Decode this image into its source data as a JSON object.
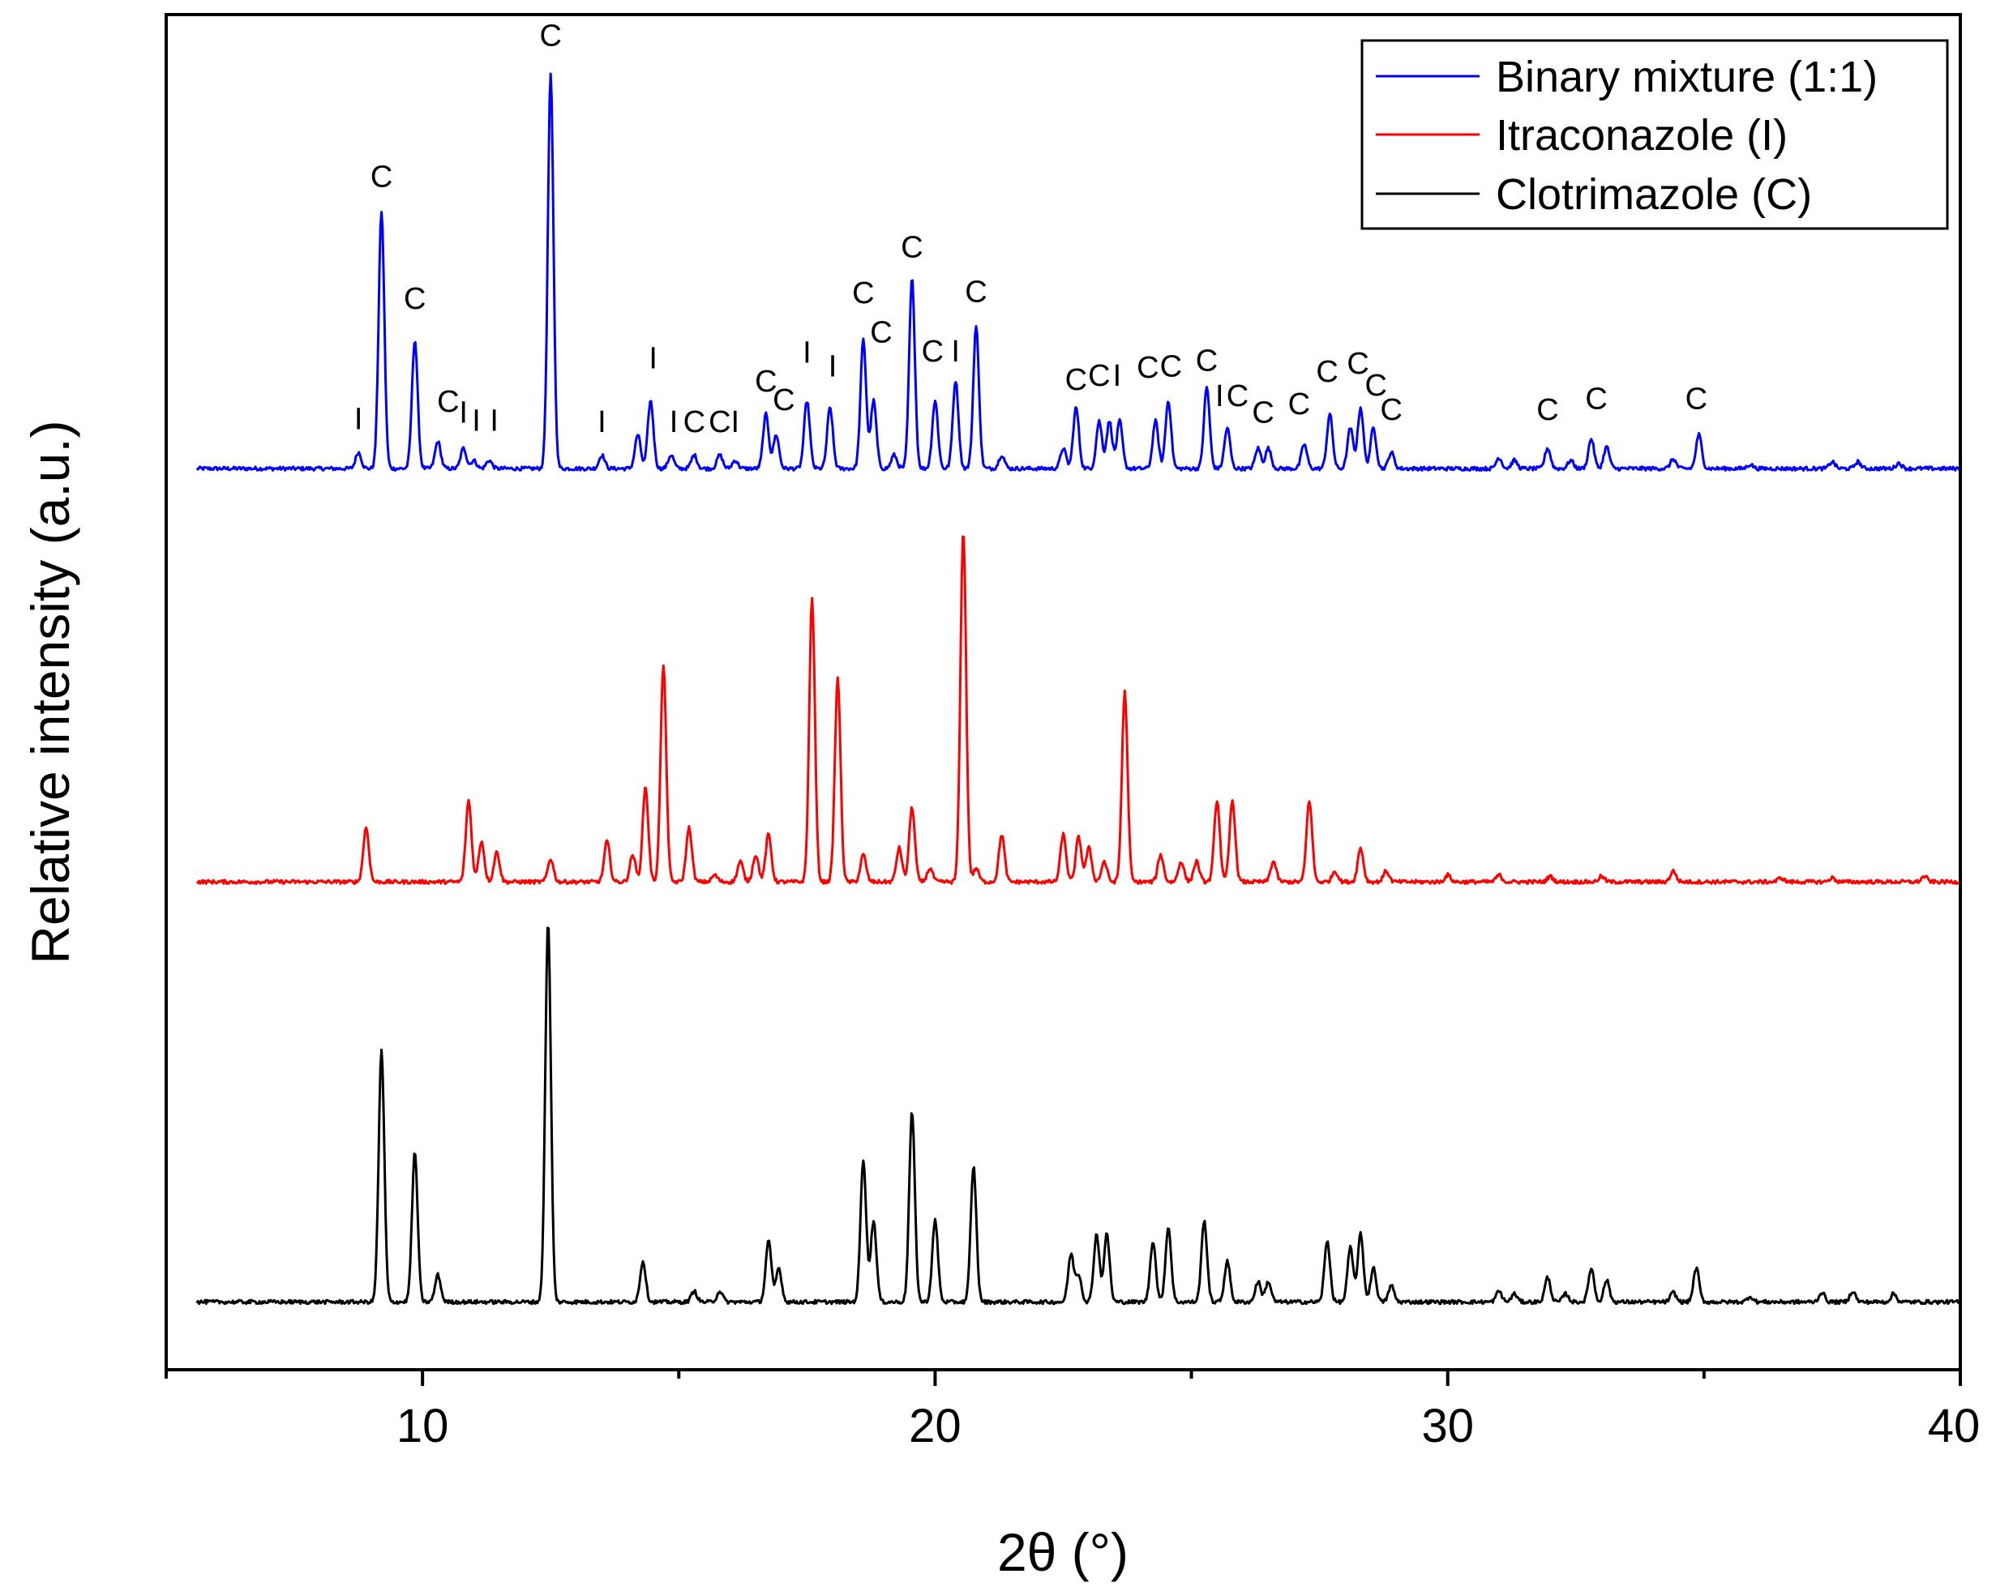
{
  "chart_data": {
    "type": "line",
    "title": "",
    "xlabel": "2θ (°)",
    "ylabel": "Relative intensity (a.u.)",
    "xlim": [
      5,
      40
    ],
    "x_ticks": [
      10,
      20,
      30,
      40
    ],
    "ylim": [
      0,
      100
    ],
    "y_ticks_shown": false,
    "grid": false,
    "legend_position": "top-right",
    "colors": {
      "binary": "#0000ff",
      "itraconazole": "#ff0000",
      "clotrimazole": "#000000"
    },
    "series": [
      {
        "name": "Binary mixture (1:1)",
        "color": "#0000ff",
        "baseline": 66.5,
        "peaks": [
          [
            8.75,
            1.2
          ],
          [
            9.2,
            19
          ],
          [
            9.85,
            9.5
          ],
          [
            10.3,
            2
          ],
          [
            10.8,
            1.5
          ],
          [
            11.0,
            0.6
          ],
          [
            11.3,
            0.6
          ],
          [
            12.5,
            29
          ],
          [
            13.5,
            1
          ],
          [
            14.2,
            2.5
          ],
          [
            14.45,
            5
          ],
          [
            14.85,
            1
          ],
          [
            15.3,
            1
          ],
          [
            15.8,
            1
          ],
          [
            16.1,
            0.6
          ],
          [
            16.7,
            4
          ],
          [
            16.9,
            2.5
          ],
          [
            17.5,
            5
          ],
          [
            17.95,
            4.5
          ],
          [
            18.6,
            9.5
          ],
          [
            18.8,
            5
          ],
          [
            19.2,
            1
          ],
          [
            19.55,
            14
          ],
          [
            20.0,
            5
          ],
          [
            20.4,
            6.5
          ],
          [
            20.8,
            10.5
          ],
          [
            21.3,
            1
          ],
          [
            22.5,
            1.5
          ],
          [
            22.75,
            4.5
          ],
          [
            23.2,
            3.5
          ],
          [
            23.4,
            3.5
          ],
          [
            23.6,
            3.5
          ],
          [
            24.3,
            3.5
          ],
          [
            24.55,
            5
          ],
          [
            25.3,
            6
          ],
          [
            25.7,
            3
          ],
          [
            26.3,
            1.5
          ],
          [
            26.5,
            1.5
          ],
          [
            27.2,
            1.8
          ],
          [
            27.7,
            4
          ],
          [
            28.1,
            3
          ],
          [
            28.3,
            4.5
          ],
          [
            28.55,
            3.0
          ],
          [
            28.9,
            1.2
          ],
          [
            31.0,
            0.8
          ],
          [
            31.3,
            0.6
          ],
          [
            31.95,
            1.5
          ],
          [
            32.4,
            0.6
          ],
          [
            32.8,
            2.2
          ],
          [
            33.1,
            1.6
          ],
          [
            34.4,
            0.7
          ],
          [
            34.9,
            2.5
          ],
          [
            35.9,
            0.3
          ],
          [
            37.5,
            0.5
          ],
          [
            38.0,
            0.5
          ],
          [
            38.8,
            0.4
          ]
        ]
      },
      {
        "name": "Itraconazole (I)",
        "color": "#ff0000",
        "baseline": 36,
        "peaks": [
          [
            8.9,
            4
          ],
          [
            10.9,
            6
          ],
          [
            11.15,
            3
          ],
          [
            11.45,
            2.2
          ],
          [
            12.5,
            1.7
          ],
          [
            13.6,
            3
          ],
          [
            14.1,
            2
          ],
          [
            14.35,
            7
          ],
          [
            14.7,
            16
          ],
          [
            15.2,
            4
          ],
          [
            15.7,
            0.5
          ],
          [
            16.2,
            1.5
          ],
          [
            16.5,
            2
          ],
          [
            16.75,
            3.5
          ],
          [
            17.6,
            21
          ],
          [
            18.1,
            15
          ],
          [
            18.6,
            2
          ],
          [
            19.3,
            2.5
          ],
          [
            19.55,
            5.5
          ],
          [
            19.9,
            1
          ],
          [
            20.55,
            26
          ],
          [
            20.8,
            1
          ],
          [
            21.3,
            3.5
          ],
          [
            22.5,
            3.5
          ],
          [
            22.8,
            3.3
          ],
          [
            23.0,
            2.5
          ],
          [
            23.3,
            1.5
          ],
          [
            23.7,
            14
          ],
          [
            24.4,
            2
          ],
          [
            24.8,
            1.5
          ],
          [
            25.1,
            1.5
          ],
          [
            25.5,
            6
          ],
          [
            25.8,
            6
          ],
          [
            26.6,
            1.5
          ],
          [
            27.3,
            6
          ],
          [
            27.8,
            0.8
          ],
          [
            28.3,
            2.5
          ],
          [
            28.8,
            0.8
          ],
          [
            30.0,
            0.5
          ],
          [
            31.0,
            0.5
          ],
          [
            32.0,
            0.4
          ],
          [
            33.0,
            0.4
          ],
          [
            34.4,
            0.8
          ],
          [
            36.5,
            0.3
          ],
          [
            37.5,
            0.3
          ],
          [
            39.3,
            0.4
          ]
        ]
      },
      {
        "name": "Clotrimazole (C)",
        "color": "#000000",
        "baseline": 5,
        "peaks": [
          [
            9.2,
            18.5
          ],
          [
            9.85,
            11
          ],
          [
            10.3,
            2
          ],
          [
            12.45,
            28
          ],
          [
            14.3,
            3
          ],
          [
            15.3,
            0.8
          ],
          [
            15.8,
            0.8
          ],
          [
            16.75,
            4.5
          ],
          [
            16.95,
            2.5
          ],
          [
            18.6,
            10.5
          ],
          [
            18.8,
            6
          ],
          [
            19.55,
            14
          ],
          [
            20.0,
            6
          ],
          [
            20.75,
            10
          ],
          [
            22.65,
            3.5
          ],
          [
            22.8,
            2
          ],
          [
            23.15,
            5
          ],
          [
            23.35,
            5
          ],
          [
            24.25,
            4.5
          ],
          [
            24.55,
            5.5
          ],
          [
            25.25,
            6
          ],
          [
            25.7,
            3
          ],
          [
            26.3,
            1.5
          ],
          [
            26.5,
            1.5
          ],
          [
            27.65,
            4.5
          ],
          [
            28.1,
            4
          ],
          [
            28.3,
            5
          ],
          [
            28.55,
            2.5
          ],
          [
            28.9,
            1.2
          ],
          [
            31.0,
            0.8
          ],
          [
            31.3,
            0.6
          ],
          [
            31.95,
            1.8
          ],
          [
            32.3,
            0.6
          ],
          [
            32.8,
            2.5
          ],
          [
            33.1,
            1.6
          ],
          [
            34.4,
            0.7
          ],
          [
            34.85,
            2.5
          ],
          [
            35.9,
            0.4
          ],
          [
            37.3,
            0.7
          ],
          [
            37.9,
            0.8
          ],
          [
            38.7,
            0.6
          ]
        ]
      }
    ],
    "peak_labels": [
      {
        "text": "I",
        "x": 8.75,
        "y": 69.4
      },
      {
        "text": "C",
        "x": 9.2,
        "y": 87.3
      },
      {
        "text": "C",
        "x": 9.85,
        "y": 78.3
      },
      {
        "text": "C",
        "x": 10.5,
        "y": 70.7
      },
      {
        "text": "I",
        "x": 10.8,
        "y": 69.9
      },
      {
        "text": "I",
        "x": 11.05,
        "y": 69.3
      },
      {
        "text": "I",
        "x": 11.4,
        "y": 69.3
      },
      {
        "text": "C",
        "x": 12.5,
        "y": 97.7
      },
      {
        "text": "I",
        "x": 13.5,
        "y": 69.2
      },
      {
        "text": "I",
        "x": 14.5,
        "y": 73.9
      },
      {
        "text": "I",
        "x": 14.9,
        "y": 69.2
      },
      {
        "text": "C",
        "x": 15.3,
        "y": 69.2
      },
      {
        "text": "C",
        "x": 15.8,
        "y": 69.2
      },
      {
        "text": "I",
        "x": 16.1,
        "y": 69.2
      },
      {
        "text": "C",
        "x": 16.7,
        "y": 72.2
      },
      {
        "text": "C",
        "x": 17.05,
        "y": 70.8
      },
      {
        "text": "I",
        "x": 17.5,
        "y": 74.3
      },
      {
        "text": "I",
        "x": 18.0,
        "y": 73.3
      },
      {
        "text": "C",
        "x": 18.6,
        "y": 78.7
      },
      {
        "text": "C",
        "x": 18.95,
        "y": 75.8
      },
      {
        "text": "C",
        "x": 19.55,
        "y": 82.1
      },
      {
        "text": "C",
        "x": 19.95,
        "y": 74.4
      },
      {
        "text": "I",
        "x": 20.4,
        "y": 74.4
      },
      {
        "text": "C",
        "x": 20.8,
        "y": 78.8
      },
      {
        "text": "C",
        "x": 22.75,
        "y": 72.3
      },
      {
        "text": "C",
        "x": 23.2,
        "y": 72.6
      },
      {
        "text": "I",
        "x": 23.55,
        "y": 72.6
      },
      {
        "text": "C",
        "x": 24.15,
        "y": 73.2
      },
      {
        "text": "C",
        "x": 24.6,
        "y": 73.3
      },
      {
        "text": "C",
        "x": 25.3,
        "y": 73.7
      },
      {
        "text": "I",
        "x": 25.55,
        "y": 71.1
      },
      {
        "text": "C",
        "x": 25.9,
        "y": 71.1
      },
      {
        "text": "C",
        "x": 26.4,
        "y": 69.9
      },
      {
        "text": "C",
        "x": 27.1,
        "y": 70.5
      },
      {
        "text": "C",
        "x": 27.65,
        "y": 72.9
      },
      {
        "text": "C",
        "x": 28.25,
        "y": 73.5
      },
      {
        "text": "C",
        "x": 28.6,
        "y": 71.9
      },
      {
        "text": "C",
        "x": 28.9,
        "y": 70.1
      },
      {
        "text": "C",
        "x": 31.95,
        "y": 70.1
      },
      {
        "text": "C",
        "x": 32.9,
        "y": 70.9
      },
      {
        "text": "C",
        "x": 34.85,
        "y": 70.9
      }
    ]
  }
}
